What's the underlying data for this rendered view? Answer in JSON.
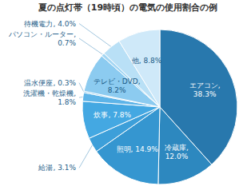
{
  "chart_data": {
    "type": "pie",
    "title": "夏の点灯帯（19時頃）の電気の使用割合の例",
    "values": [
      38.3,
      12.0,
      14.9,
      3.1,
      7.8,
      1.8,
      0.3,
      8.2,
      0.7,
      4.0,
      8.8
    ],
    "value_labels": [
      "エアコン, 38.3%",
      "冷蔵庫, 12.0%",
      "照明, 14.9%",
      "給湯, 3.1%",
      "炊事, 7.8%",
      "洗濯機・乾燥機, 1.8%",
      "温水便座, 0.3%",
      "テレビ・DVD, 8.2%",
      "パソコン・ルーター, 0.7%",
      "待機電力, 4.0%",
      "他, 8.8%"
    ],
    "colors": [
      "#2878ad",
      "#2d88bf",
      "#3596d0",
      "#3d9fd9",
      "#44a8e2",
      "#5db4e8",
      "#74bfec",
      "#8ccbf0",
      "#a3d6f3",
      "#b9e0f6",
      "#cfe9f9"
    ],
    "data_labels": true
  }
}
